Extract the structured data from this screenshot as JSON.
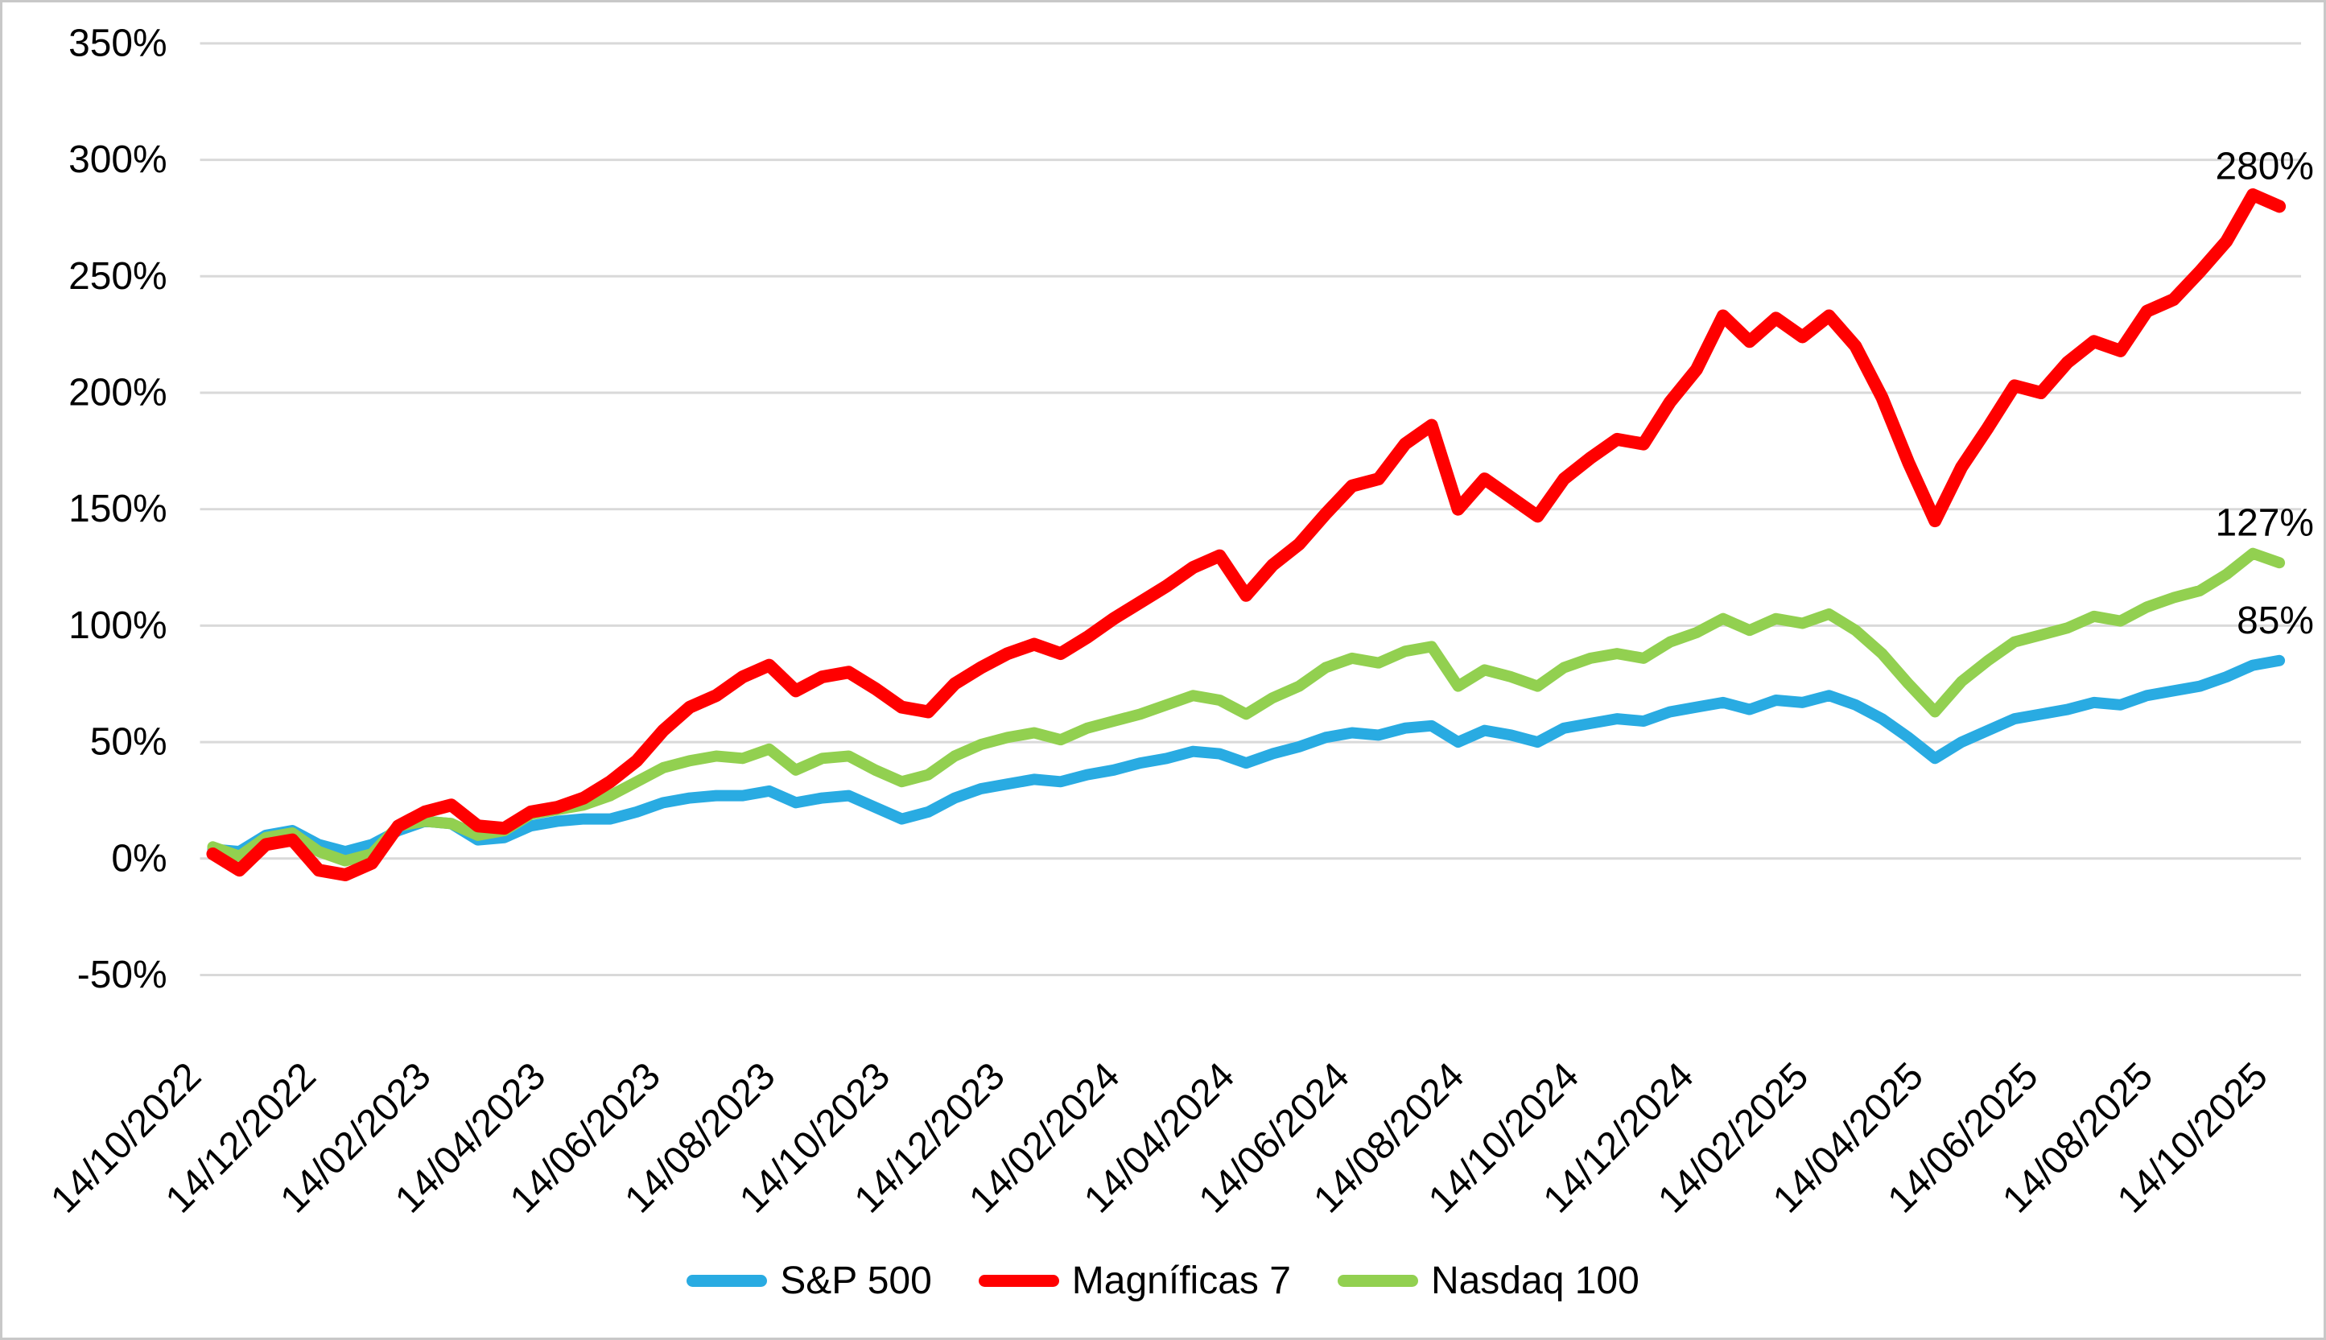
{
  "chart_data": {
    "type": "line",
    "title": "",
    "grid": "horizontal",
    "legend_position": "bottom",
    "y_axis": {
      "min": -50,
      "max": 350,
      "step": 50,
      "tick_labels": [
        "350%",
        "300%",
        "250%",
        "200%",
        "150%",
        "100%",
        "50%",
        "0%",
        "-50%"
      ]
    },
    "x_axis": {
      "tick_labels": [
        "14/10/2022",
        "14/12/2022",
        "14/02/2023",
        "14/04/2023",
        "14/06/2023",
        "14/08/2023",
        "14/10/2023",
        "14/12/2023",
        "14/02/2024",
        "14/04/2024",
        "14/06/2024",
        "14/08/2024",
        "14/10/2024",
        "14/12/2024",
        "14/02/2025",
        "14/04/2025",
        "14/06/2025",
        "14/08/2025",
        "14/10/2025"
      ]
    },
    "draw_order": [
      0,
      2,
      1
    ],
    "series": [
      {
        "name": "S&P 500",
        "color": "#29ABE2",
        "line_width": 14,
        "end_label": "85%",
        "values": [
          4,
          3,
          10,
          12,
          6,
          3,
          6,
          12,
          16,
          15,
          8,
          9,
          14,
          16,
          17,
          17,
          20,
          24,
          26,
          27,
          27,
          29,
          24,
          26,
          27,
          22,
          17,
          20,
          26,
          30,
          32,
          34,
          33,
          36,
          38,
          41,
          43,
          46,
          45,
          41,
          45,
          48,
          52,
          54,
          53,
          56,
          57,
          50,
          55,
          53,
          50,
          56,
          58,
          60,
          59,
          63,
          65,
          67,
          64,
          68,
          67,
          70,
          66,
          60,
          52,
          43,
          50,
          55,
          60,
          62,
          64,
          67,
          66,
          70,
          72,
          74,
          78,
          83,
          85
        ]
      },
      {
        "name": "Magníficas 7",
        "color": "#FF0000",
        "line_width": 16,
        "end_label": "280%",
        "values": [
          2,
          -5,
          6,
          8,
          -5,
          -7,
          -2,
          14,
          20,
          23,
          14,
          13,
          20,
          22,
          26,
          33,
          42,
          55,
          65,
          70,
          78,
          83,
          72,
          78,
          80,
          73,
          65,
          63,
          75,
          82,
          88,
          92,
          88,
          95,
          103,
          110,
          117,
          125,
          130,
          113,
          126,
          135,
          148,
          160,
          163,
          178,
          186,
          150,
          163,
          155,
          147,
          163,
          172,
          180,
          178,
          196,
          210,
          233,
          222,
          232,
          224,
          233,
          220,
          198,
          170,
          145,
          168,
          185,
          203,
          200,
          213,
          222,
          218,
          235,
          240,
          252,
          265,
          285,
          280
        ]
      },
      {
        "name": "Nasdaq 100",
        "color": "#92D050",
        "line_width": 14,
        "end_label": "127%",
        "values": [
          5,
          1,
          9,
          11,
          3,
          -1,
          2,
          14,
          16,
          15,
          10,
          12,
          19,
          21,
          23,
          27,
          33,
          39,
          42,
          44,
          43,
          47,
          38,
          43,
          44,
          38,
          33,
          36,
          44,
          49,
          52,
          54,
          51,
          56,
          59,
          62,
          66,
          70,
          68,
          62,
          69,
          74,
          82,
          86,
          84,
          89,
          91,
          74,
          81,
          78,
          74,
          82,
          86,
          88,
          86,
          93,
          97,
          103,
          98,
          103,
          101,
          105,
          98,
          88,
          75,
          63,
          76,
          85,
          93,
          96,
          99,
          104,
          102,
          108,
          112,
          115,
          122,
          131,
          127
        ]
      }
    ]
  },
  "styles": {
    "gridline_color": "#D9D9D9",
    "text_color": "#000000",
    "background_color": "#FFFFFF",
    "border_color": "#C8C8C8"
  }
}
